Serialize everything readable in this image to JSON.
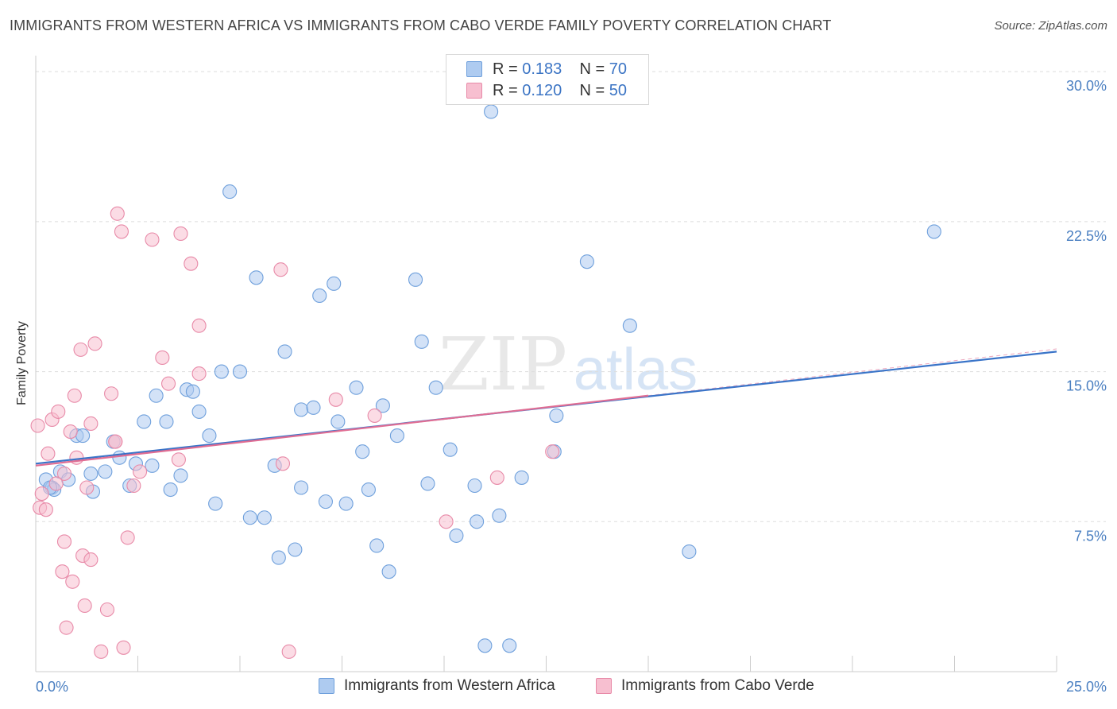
{
  "title": "IMMIGRANTS FROM WESTERN AFRICA VS IMMIGRANTS FROM CABO VERDE FAMILY POVERTY CORRELATION CHART",
  "source": "Source: ZipAtlas.com",
  "watermark": {
    "zip": "ZIP",
    "atlas": "atlas"
  },
  "legend_top": {
    "rows": [
      {
        "r_label": "R =",
        "r_value": "0.183",
        "n_label": "N =",
        "n_value": "70"
      },
      {
        "r_label": "R =",
        "r_value": "0.120",
        "n_label": "N =",
        "n_value": "50"
      }
    ]
  },
  "legend_bottom": {
    "series_a": "Immigrants from Western Africa",
    "series_b": "Immigrants from Cabo Verde"
  },
  "colors": {
    "blue_fill": "#aecbf0",
    "blue_stroke": "#6fa0dc",
    "blue_line": "#3a74c8",
    "pink_fill": "#f7bfd0",
    "pink_stroke": "#e88aa8",
    "pink_line": "#e06d93",
    "grid": "#dddddd",
    "tick_text": "#4a7fc1"
  },
  "chart_data": {
    "type": "scatter",
    "title": "IMMIGRANTS FROM WESTERN AFRICA VS IMMIGRANTS FROM CABO VERDE FAMILY POVERTY CORRELATION CHART",
    "xlabel": "",
    "ylabel": "Family Poverty",
    "xlim": [
      0,
      25
    ],
    "ylim": [
      0,
      30.8
    ],
    "x_tick_labels": [
      {
        "value": 0,
        "label": "0.0%"
      },
      {
        "value": 25,
        "label": "25.0%"
      }
    ],
    "y_tick_labels": [
      {
        "value": 7.5,
        "label": "7.5%"
      },
      {
        "value": 15,
        "label": "15.0%"
      },
      {
        "value": 22.5,
        "label": "22.5%"
      },
      {
        "value": 30,
        "label": "30.0%"
      }
    ],
    "x_minor_ticks": [
      0,
      2.5,
      5,
      7.5,
      10,
      12.5,
      15,
      17.5,
      20,
      22.5,
      25
    ],
    "series": [
      {
        "name": "Immigrants from Western Africa",
        "color": "blue",
        "R": 0.183,
        "N": 70,
        "trend": {
          "x0": 0,
          "y0": 10.4,
          "x1": 25,
          "y1": 16.0
        },
        "points": [
          [
            0.25,
            9.6
          ],
          [
            0.4,
            9.2
          ],
          [
            0.45,
            9.1
          ],
          [
            0.6,
            10.0
          ],
          [
            0.8,
            9.6
          ],
          [
            1.0,
            11.8
          ],
          [
            1.15,
            11.8
          ],
          [
            1.4,
            9.0
          ],
          [
            1.35,
            9.9
          ],
          [
            1.7,
            10.0
          ],
          [
            1.9,
            11.5
          ],
          [
            2.05,
            10.7
          ],
          [
            2.3,
            9.3
          ],
          [
            2.45,
            10.4
          ],
          [
            2.85,
            10.3
          ],
          [
            2.65,
            12.5
          ],
          [
            2.95,
            13.8
          ],
          [
            3.2,
            12.5
          ],
          [
            3.3,
            9.1
          ],
          [
            3.55,
            9.8
          ],
          [
            3.7,
            14.1
          ],
          [
            3.85,
            14.0
          ],
          [
            4.0,
            13.0
          ],
          [
            4.25,
            11.8
          ],
          [
            4.4,
            8.4
          ],
          [
            4.55,
            15.0
          ],
          [
            4.75,
            24.0
          ],
          [
            5.0,
            15.0
          ],
          [
            5.25,
            7.7
          ],
          [
            5.4,
            19.7
          ],
          [
            5.6,
            7.7
          ],
          [
            5.85,
            10.3
          ],
          [
            5.95,
            5.7
          ],
          [
            6.1,
            16.0
          ],
          [
            6.35,
            6.1
          ],
          [
            6.5,
            9.2
          ],
          [
            6.5,
            13.1
          ],
          [
            6.8,
            13.2
          ],
          [
            6.95,
            18.8
          ],
          [
            7.1,
            8.5
          ],
          [
            7.3,
            19.4
          ],
          [
            7.4,
            12.5
          ],
          [
            7.6,
            8.4
          ],
          [
            7.85,
            14.2
          ],
          [
            8.0,
            11.0
          ],
          [
            8.15,
            9.1
          ],
          [
            8.35,
            6.3
          ],
          [
            8.5,
            13.3
          ],
          [
            8.65,
            5.0
          ],
          [
            8.85,
            11.8
          ],
          [
            9.3,
            19.6
          ],
          [
            9.45,
            16.5
          ],
          [
            9.6,
            9.4
          ],
          [
            9.8,
            14.2
          ],
          [
            10.15,
            11.1
          ],
          [
            10.3,
            6.8
          ],
          [
            10.75,
            9.3
          ],
          [
            10.8,
            7.5
          ],
          [
            11.0,
            1.3
          ],
          [
            11.15,
            28.0
          ],
          [
            11.35,
            7.8
          ],
          [
            11.6,
            1.3
          ],
          [
            11.9,
            9.7
          ],
          [
            12.7,
            11.0
          ],
          [
            12.75,
            12.8
          ],
          [
            13.5,
            20.5
          ],
          [
            14.55,
            17.3
          ],
          [
            16.0,
            6.0
          ],
          [
            22.0,
            22.0
          ],
          [
            0.35,
            9.2
          ]
        ]
      },
      {
        "name": "Immigrants from Cabo Verde",
        "color": "pink",
        "R": 0.12,
        "N": 50,
        "trend": {
          "x0": 0,
          "y0": 10.3,
          "x1": 15.0,
          "y1": 13.8
        },
        "points": [
          [
            0.05,
            12.3
          ],
          [
            0.1,
            8.2
          ],
          [
            0.15,
            8.9
          ],
          [
            0.25,
            8.1
          ],
          [
            0.3,
            10.9
          ],
          [
            0.4,
            12.6
          ],
          [
            0.55,
            13.0
          ],
          [
            0.65,
            5.0
          ],
          [
            0.7,
            9.9
          ],
          [
            0.7,
            6.5
          ],
          [
            0.75,
            2.2
          ],
          [
            0.85,
            12.0
          ],
          [
            0.9,
            4.5
          ],
          [
            0.95,
            13.8
          ],
          [
            1.0,
            10.7
          ],
          [
            1.1,
            16.1
          ],
          [
            1.15,
            5.8
          ],
          [
            1.2,
            3.3
          ],
          [
            1.25,
            9.2
          ],
          [
            1.35,
            5.6
          ],
          [
            1.35,
            12.4
          ],
          [
            1.45,
            16.4
          ],
          [
            1.6,
            1.0
          ],
          [
            1.75,
            3.1
          ],
          [
            1.85,
            13.9
          ],
          [
            1.95,
            11.5
          ],
          [
            2.0,
            22.9
          ],
          [
            2.1,
            22.0
          ],
          [
            2.15,
            1.2
          ],
          [
            2.25,
            6.7
          ],
          [
            2.4,
            9.3
          ],
          [
            2.55,
            10.0
          ],
          [
            2.85,
            21.6
          ],
          [
            3.1,
            15.7
          ],
          [
            3.25,
            14.4
          ],
          [
            3.5,
            10.6
          ],
          [
            3.55,
            21.9
          ],
          [
            3.8,
            20.4
          ],
          [
            4.0,
            17.3
          ],
          [
            4.0,
            14.9
          ],
          [
            6.0,
            20.1
          ],
          [
            6.05,
            10.4
          ],
          [
            6.2,
            1.0
          ],
          [
            7.35,
            13.6
          ],
          [
            8.3,
            12.8
          ],
          [
            10.05,
            7.5
          ],
          [
            11.3,
            9.7
          ],
          [
            12.65,
            11.0
          ],
          [
            1.95,
            11.5
          ],
          [
            0.5,
            9.4
          ]
        ]
      }
    ]
  }
}
